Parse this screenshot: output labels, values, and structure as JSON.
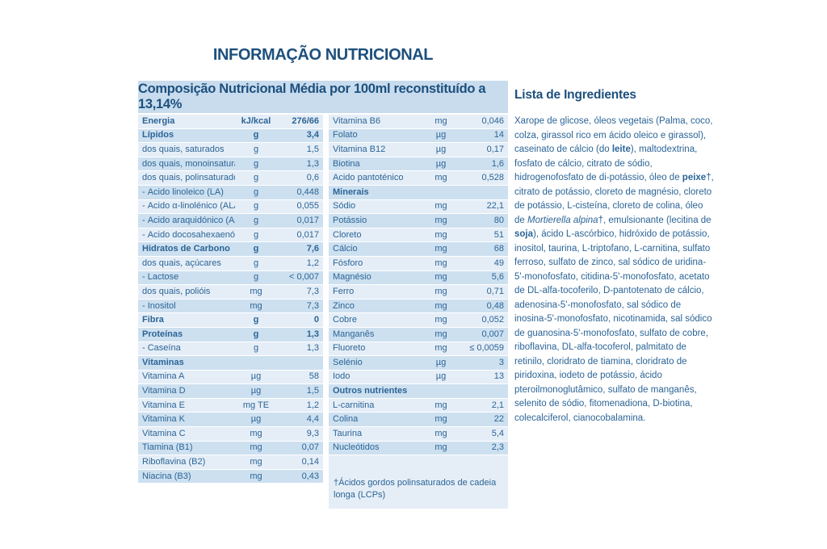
{
  "page": {
    "title": "INFORMAÇÃO NUTRICIONAL"
  },
  "colors": {
    "heading": "#1d507d",
    "text": "#2b6496",
    "band": "#c8dcee",
    "row_dark": "#cde0f0",
    "row_light": "#e5eef7",
    "page_bg": "#ffffff"
  },
  "table": {
    "header": "Composição Nutricional Média por 100ml reconstituído a 13,14%",
    "left_rows": [
      {
        "label": "Energia",
        "unit": "kJ/kcal",
        "value": "276/66",
        "bold": true
      },
      {
        "label": "Lípidos",
        "unit": "g",
        "value": "3,4",
        "bold": true
      },
      {
        "label": "dos quais, saturados",
        "unit": "g",
        "value": "1,5"
      },
      {
        "label": "dos quais, monoinsaturados",
        "unit": "g",
        "value": "1,3"
      },
      {
        "label": "dos quais, polinsaturados",
        "unit": "g",
        "value": "0,6"
      },
      {
        "label": "- Ácido linoleico (LA)",
        "unit": "g",
        "value": "0,448"
      },
      {
        "label": "- Ácido α-linolénico (ALA)",
        "unit": "g",
        "value": "0,055"
      },
      {
        "label": "- Ácido araquidónico (AA)†",
        "unit": "g",
        "value": "0,017"
      },
      {
        "label": "- Ácido docosahexaenóico (DHA)†",
        "unit": "g",
        "value": "0,017"
      },
      {
        "label": "Hidratos de Carbono",
        "unit": "g",
        "value": "7,6",
        "bold": true
      },
      {
        "label": "dos quais, açúcares",
        "unit": "g",
        "value": "1,2"
      },
      {
        "label": "- Lactose",
        "unit": "g",
        "value": "< 0,007"
      },
      {
        "label": "dos quais, polióis",
        "unit": "mg",
        "value": "7,3"
      },
      {
        "label": "- Inositol",
        "unit": "mg",
        "value": "7,3"
      },
      {
        "label": "Fibra",
        "unit": "g",
        "value": "0",
        "bold": true
      },
      {
        "label": "Proteínas",
        "unit": "g",
        "value": "1,3",
        "bold": true
      },
      {
        "label": "- Caseína",
        "unit": "g",
        "value": "1,3"
      },
      {
        "label": "Vitaminas",
        "section": true
      },
      {
        "label": "Vitamina A",
        "unit": "µg",
        "value": "58"
      },
      {
        "label": "Vitamina D",
        "unit": "µg",
        "value": "1,5"
      },
      {
        "label": "Vitamina E",
        "unit": "mg TE",
        "value": "1,2"
      },
      {
        "label": "Vitamina K",
        "unit": "µg",
        "value": "4,4"
      },
      {
        "label": "Vitamina C",
        "unit": "mg",
        "value": "9,3"
      },
      {
        "label": "Tiamina (B1)",
        "unit": "mg",
        "value": "0,07"
      },
      {
        "label": "Riboflavina (B2)",
        "unit": "mg",
        "value": "0,14"
      },
      {
        "label": "Niacina (B3)",
        "unit": "mg",
        "value": "0,43"
      }
    ],
    "right_rows": [
      {
        "label": "Vitamina B6",
        "unit": "mg",
        "value": "0,046"
      },
      {
        "label": "Folato",
        "unit": "µg",
        "value": "14"
      },
      {
        "label": "Vitamina B12",
        "unit": "µg",
        "value": "0,17"
      },
      {
        "label": "Biotina",
        "unit": "µg",
        "value": "1,6"
      },
      {
        "label": "Ácido pantoténico",
        "unit": "mg",
        "value": "0,528"
      },
      {
        "label": "Minerais",
        "section": true
      },
      {
        "label": "Sódio",
        "unit": "mg",
        "value": "22,1"
      },
      {
        "label": "Potássio",
        "unit": "mg",
        "value": "80"
      },
      {
        "label": "Cloreto",
        "unit": "mg",
        "value": "51"
      },
      {
        "label": "Cálcio",
        "unit": "mg",
        "value": "68"
      },
      {
        "label": "Fósforo",
        "unit": "mg",
        "value": "49"
      },
      {
        "label": "Magnésio",
        "unit": "mg",
        "value": "5,6"
      },
      {
        "label": "Ferro",
        "unit": "mg",
        "value": "0,71"
      },
      {
        "label": "Zinco",
        "unit": "mg",
        "value": "0,48"
      },
      {
        "label": "Cobre",
        "unit": "mg",
        "value": "0,052"
      },
      {
        "label": "Manganês",
        "unit": "mg",
        "value": "0,007"
      },
      {
        "label": "Fluoreto",
        "unit": "mg",
        "value": "≤ 0,0059"
      },
      {
        "label": "Selénio",
        "unit": "µg",
        "value": "3"
      },
      {
        "label": "Iodo",
        "unit": "µg",
        "value": "13"
      },
      {
        "label": "Outros nutrientes",
        "section": true
      },
      {
        "label": "L-carnitina",
        "unit": "mg",
        "value": "2,1"
      },
      {
        "label": "Colina",
        "unit": "mg",
        "value": "22"
      },
      {
        "label": "Taurina",
        "unit": "mg",
        "value": "5,4"
      },
      {
        "label": "Nucleótidos",
        "unit": "mg",
        "value": "2,3"
      }
    ],
    "footnote": "†Ácidos gordos polinsaturados de cadeia longa (LCPs)"
  },
  "ingredients": {
    "heading": "Lista de Ingredientes",
    "segments": [
      {
        "text": "Xarope de glicose, óleos vegetais (Palma, coco, colza, girassol rico em ácido oleico e girassol), caseinato de cálcio (do "
      },
      {
        "text": "leite",
        "bold": true
      },
      {
        "text": "), maltodextrina, fosfato de cálcio, citrato de sódio,  hidrogenofosfato de di-potássio, óleo de "
      },
      {
        "text": "peixe",
        "bold": true
      },
      {
        "text": "†, citrato de potássio, cloreto de magnésio, cloreto de potássio, L-cisteína, cloreto de colina, óleo de "
      },
      {
        "text": "Mortierella alpina",
        "italic": true
      },
      {
        "text": "†, emulsionante (lecitina de "
      },
      {
        "text": "soja",
        "bold": true
      },
      {
        "text": "), ácido L-ascórbico, hidróxido de potássio, inositol, taurina, L-triptofano, L-carnitina, sulfato ferroso, sulfato de zinco, sal sódico de uridina-5'-monofosfato, citidina-5'-monofosfato, acetato de DL-alfa-tocoferilo, D-pantotenato de cálcio, adenosina-5'-monofosfato, sal sódico de inosina-5'-monofosfato, nicotinamida, sal sódico de guanosina-5'-monofosfato, sulfato de cobre, riboflavina, DL-alfa-tocoferol, palmitato de retinilo, cloridrato de tiamina, cloridrato de piridoxina, iodeto de potássio, ácido pteroilmonoglutâmico, sulfato de manganês, selenito de sódio, fitomenadiona, D-biotina, colecalciferol, cianocobalamina."
      }
    ]
  }
}
